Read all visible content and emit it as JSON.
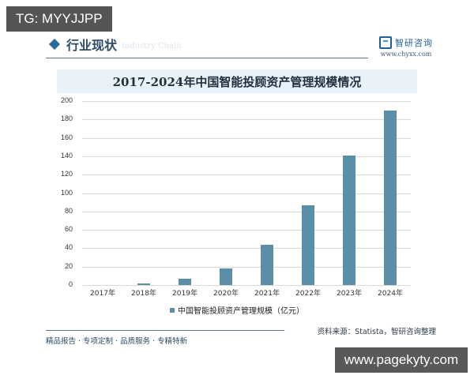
{
  "overlay": {
    "tg_label": "TG: MYYJJPP",
    "site_label": "www.pagekyty.com"
  },
  "header": {
    "section_title": "行业现状",
    "section_ghost": "Industry Chain",
    "brand_name": "智研咨询",
    "brand_url": "www.chyxx.com"
  },
  "footer": {
    "slogan": "精品报告 · 专项定制 · 品质服务 · 专精特新",
    "source": "资料来源：Statista，智研咨询整理"
  },
  "colors": {
    "bar": "#5b8fa8",
    "title_band": "#e8f1f8",
    "accent": "#2a6a9a"
  },
  "chart_data": {
    "type": "bar",
    "title": "2017-2024年中国智能投顾资产管理规模情况",
    "categories": [
      "2017年",
      "2018年",
      "2019年",
      "2020年",
      "2021年",
      "2022年",
      "2023年",
      "2024年"
    ],
    "series": [
      {
        "name": "中国智能投顾资产管理规模（亿元）",
        "values": [
          0,
          1.5,
          7,
          18,
          44,
          87,
          141,
          190
        ]
      }
    ],
    "xlabel": "",
    "ylabel": "",
    "ylim": [
      0,
      200
    ],
    "yticks": [
      "0",
      "20",
      "40",
      "60",
      "80",
      "100",
      "120",
      "140",
      "160",
      "180",
      "200"
    ],
    "grid": true,
    "legend_position": "bottom"
  }
}
